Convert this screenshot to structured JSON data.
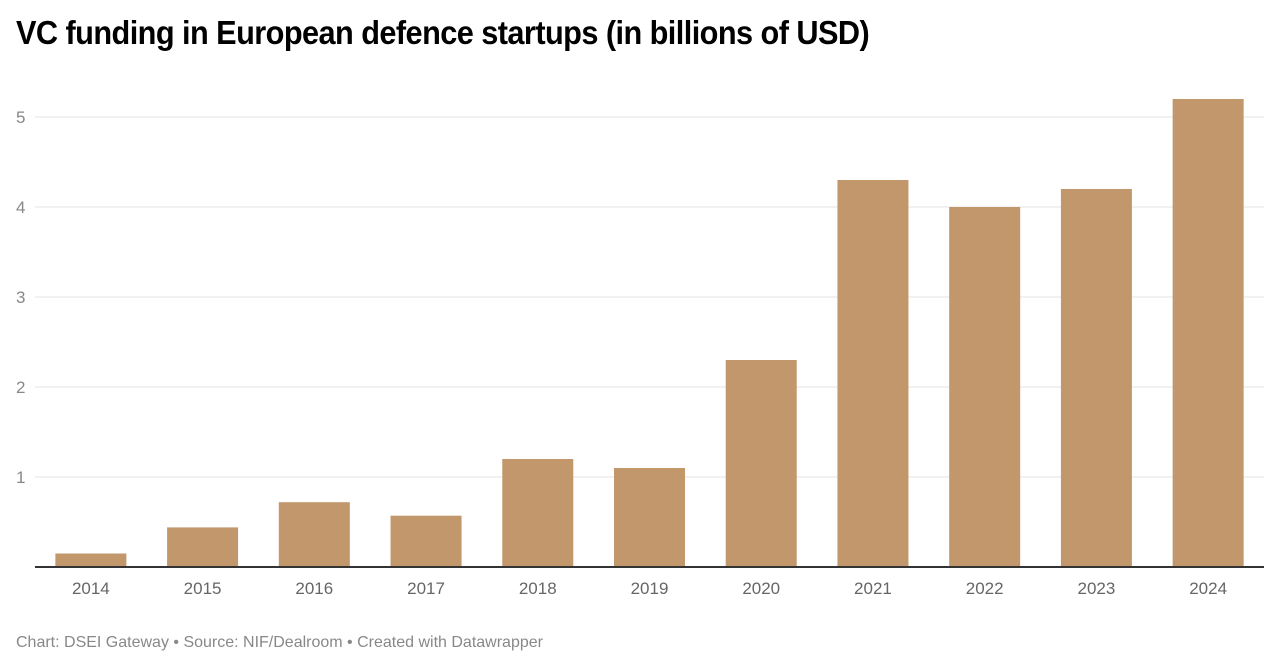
{
  "chart_data": {
    "type": "bar",
    "title": "VC funding in European defence startups (in billions of USD)",
    "xlabel": "",
    "ylabel": "",
    "categories": [
      "2014",
      "2015",
      "2016",
      "2017",
      "2018",
      "2019",
      "2020",
      "2021",
      "2022",
      "2023",
      "2024"
    ],
    "values": [
      0.15,
      0.44,
      0.72,
      0.57,
      1.2,
      1.1,
      2.3,
      4.3,
      4.0,
      4.2,
      5.2
    ],
    "ylim": [
      0,
      5.2
    ],
    "yticks": [
      1,
      2,
      3,
      4,
      5
    ],
    "grid": true,
    "legend": "none",
    "bar_color": "#c2976b",
    "gridline_color": "#e3e3e3",
    "axis_color": "#333333"
  },
  "footer": {
    "text": "Chart: DSEI Gateway • Source: NIF/Dealroom • Created with Datawrapper"
  }
}
